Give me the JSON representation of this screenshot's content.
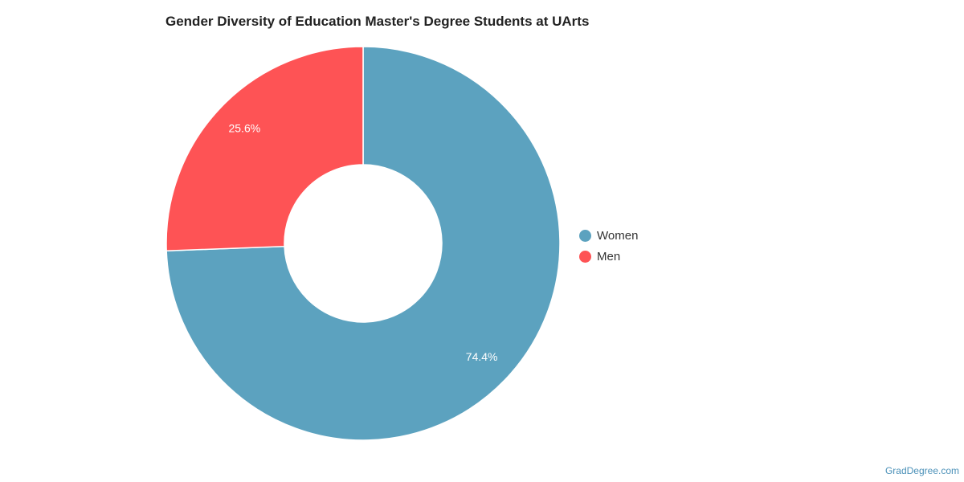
{
  "chart_data": {
    "type": "pie",
    "title": "Gender Diversity of Education Master's Degree Students at UArts",
    "categories": [
      "Women",
      "Men"
    ],
    "values": [
      74.4,
      25.6
    ],
    "value_labels": [
      "74.4%",
      "25.6%"
    ],
    "colors": [
      "#5ca2bf",
      "#fe5355"
    ],
    "donut": true,
    "legend_position": "right"
  },
  "credit": "GradDegree.com"
}
